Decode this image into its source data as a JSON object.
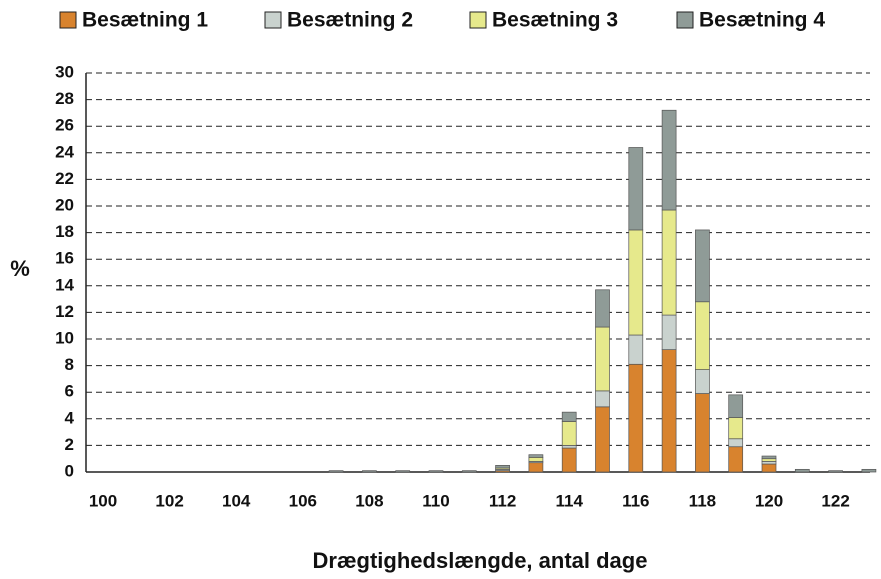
{
  "chart_data": {
    "type": "stacked_bar",
    "x_label": "Drægtighedslængde, antal dage",
    "y_label": "%",
    "categories": [
      100,
      null,
      102,
      null,
      104,
      null,
      106,
      null,
      108,
      null,
      110,
      null,
      112,
      null,
      114,
      null,
      116,
      null,
      118,
      null,
      120,
      null,
      122,
      null
    ],
    "series": [
      {
        "name": "Besætning 1",
        "color": "#d8832e",
        "values": [
          0,
          0,
          0,
          0,
          0,
          0,
          0,
          0,
          0,
          0,
          0,
          0,
          0.1,
          0.7,
          1.8,
          4.9,
          8.1,
          9.2,
          5.9,
          1.9,
          0.6,
          0,
          0,
          0
        ]
      },
      {
        "name": "Besætning 2",
        "color": "#c9d2ce",
        "values": [
          0,
          0,
          0,
          0,
          0,
          0,
          0,
          0,
          0,
          0,
          0,
          0,
          0.1,
          0.1,
          0.2,
          1.2,
          2.2,
          2.6,
          1.8,
          0.6,
          0.2,
          0,
          0,
          0
        ]
      },
      {
        "name": "Besætning 3",
        "color": "#e6e98c",
        "values": [
          0,
          0,
          0,
          0,
          0,
          0,
          0,
          0,
          0,
          0,
          0,
          0,
          0.1,
          0.3,
          1.8,
          4.8,
          7.9,
          7.9,
          5.1,
          1.6,
          0.2,
          0,
          0,
          0
        ]
      },
      {
        "name": "Besætning 4",
        "color": "#8f9b97",
        "values": [
          0,
          0,
          0,
          0,
          0,
          0,
          0,
          0.1,
          0.1,
          0.1,
          0.1,
          0.1,
          0.2,
          0.2,
          0.7,
          2.8,
          6.2,
          7.5,
          5.4,
          1.7,
          0.2,
          0.2,
          0.1,
          0.2
        ]
      }
    ],
    "ylim": [
      0,
      30
    ],
    "yticks": [
      0,
      2,
      4,
      6,
      8,
      10,
      12,
      14,
      16,
      18,
      20,
      22,
      24,
      26,
      28,
      30
    ],
    "grid": true,
    "legend": "top"
  }
}
